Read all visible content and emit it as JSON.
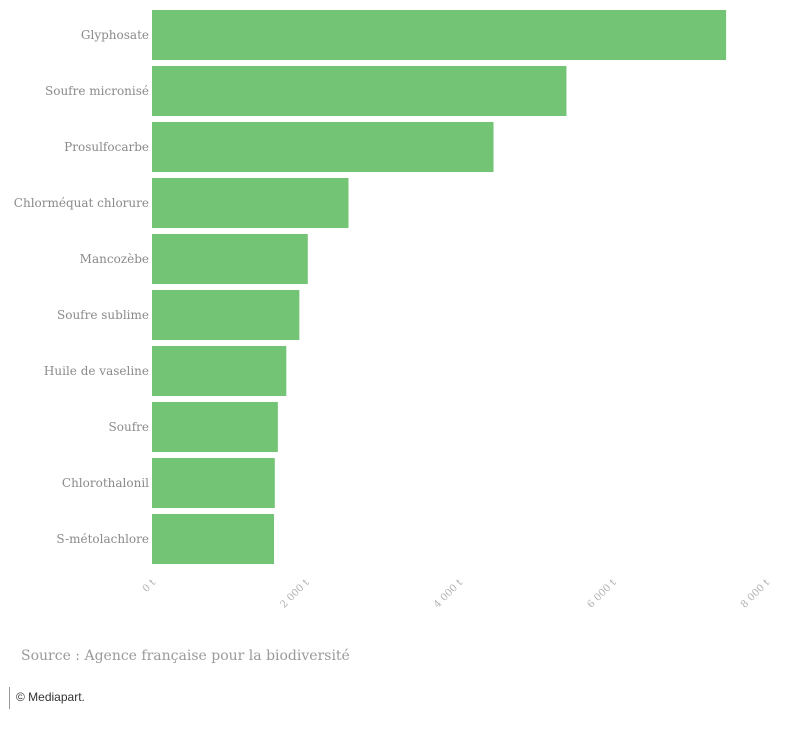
{
  "chart_data": {
    "type": "bar",
    "orientation": "horizontal",
    "categories": [
      "Glyphosate",
      "Soufre micronisé",
      "Prosulfocarbe",
      "Chlorméquat chlorure",
      "Mancozèbe",
      "Soufre sublime",
      "Huile de vaseline",
      "Soufre",
      "Chlorothalonil",
      "S-métolachlore"
    ],
    "values": [
      7480,
      5400,
      4450,
      2560,
      2030,
      1920,
      1750,
      1640,
      1600,
      1590
    ],
    "xlim": [
      0,
      8000
    ],
    "xticks": [
      0,
      2000,
      4000,
      6000,
      8000
    ],
    "xtick_labels": [
      "0 t",
      "2 000 t",
      "4 000 t",
      "6 000 t",
      "8 000 t"
    ],
    "bar_color": "#74c476",
    "grid": false,
    "legend": "none"
  },
  "footer": {
    "source": "Source : Agence française pour la biodiversité",
    "credit": "© Mediapart."
  }
}
